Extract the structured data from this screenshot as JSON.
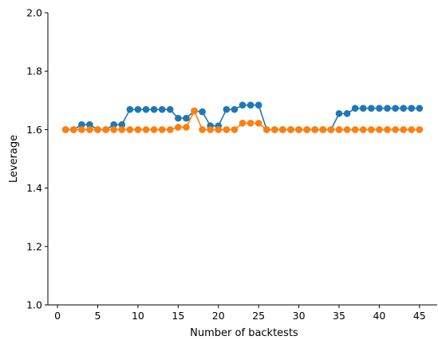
{
  "chart_data": {
    "type": "line",
    "title": "",
    "xlabel": "Number of backtests",
    "ylabel": "Leverage",
    "xlim": [
      -1.2,
      47.2
    ],
    "ylim": [
      1.0,
      2.0
    ],
    "xticks": [
      0,
      5,
      10,
      15,
      20,
      25,
      30,
      35,
      40,
      45
    ],
    "yticks": [
      1.0,
      1.2,
      1.4,
      1.6,
      1.8,
      2.0
    ],
    "xtick_labels": [
      "0",
      "5",
      "10",
      "15",
      "20",
      "25",
      "30",
      "35",
      "40",
      "45"
    ],
    "ytick_labels": [
      "1.0",
      "1.2",
      "1.4",
      "1.6",
      "1.8",
      "2.0"
    ],
    "grid": false,
    "legend": "none",
    "x": [
      1,
      2,
      3,
      4,
      5,
      6,
      7,
      8,
      9,
      10,
      11,
      12,
      13,
      14,
      15,
      16,
      17,
      18,
      19,
      20,
      21,
      22,
      23,
      24,
      25,
      26,
      27,
      28,
      29,
      30,
      31,
      32,
      33,
      34,
      35,
      36,
      37,
      38,
      39,
      40,
      41,
      42,
      43,
      44,
      45
    ],
    "series": [
      {
        "color": "#1f77b4",
        "values": [
          1.6,
          1.6,
          1.617,
          1.617,
          1.6,
          1.6,
          1.617,
          1.617,
          1.669,
          1.669,
          1.669,
          1.669,
          1.669,
          1.669,
          1.639,
          1.639,
          1.664,
          1.661,
          1.613,
          1.613,
          1.669,
          1.669,
          1.684,
          1.684,
          1.684,
          1.6,
          1.6,
          1.6,
          1.6,
          1.6,
          1.6,
          1.6,
          1.6,
          1.6,
          1.655,
          1.655,
          1.673,
          1.673,
          1.673,
          1.673,
          1.673,
          1.673,
          1.673,
          1.673,
          1.673
        ]
      },
      {
        "color": "#ff7f0e",
        "values": [
          1.6,
          1.6,
          1.6,
          1.6,
          1.6,
          1.6,
          1.6,
          1.6,
          1.6,
          1.6,
          1.6,
          1.6,
          1.6,
          1.6,
          1.608,
          1.608,
          1.664,
          1.6,
          1.6,
          1.6,
          1.6,
          1.6,
          1.622,
          1.622,
          1.622,
          1.6,
          1.6,
          1.6,
          1.6,
          1.6,
          1.6,
          1.6,
          1.6,
          1.6,
          1.6,
          1.6,
          1.6,
          1.6,
          1.6,
          1.6,
          1.6,
          1.6,
          1.6,
          1.6,
          1.6
        ]
      }
    ]
  }
}
